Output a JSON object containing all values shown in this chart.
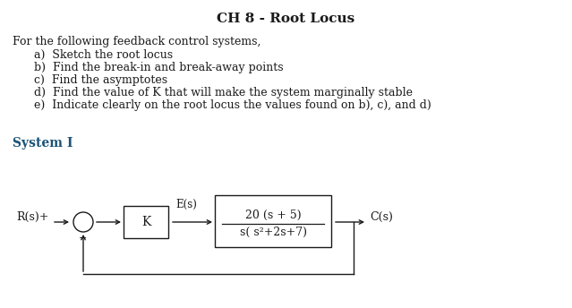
{
  "title": "CH 8 - Root Locus",
  "title_fontsize": 11,
  "body_text": "For the following feedback control systems,",
  "items": [
    "a)  Sketch the root locus",
    "b)  Find the break-in and break-away points",
    "c)  Find the asymptotes",
    "d)  Find the value of K that will make the system marginally stable",
    "e)  Indicate clearly on the root locus the values found on b), c), and d)"
  ],
  "system_label": "System I",
  "system_label_color": "#1a5276",
  "tf_numerator": "20 (s + 5)",
  "tf_denominator": "s( s²+2s+7)",
  "background_color": "#ffffff",
  "text_color": "#1a1a1a",
  "font_family": "serif",
  "body_fontsize": 9,
  "item_fontsize": 9,
  "system_fontsize": 10,
  "diagram_fontsize": 9
}
